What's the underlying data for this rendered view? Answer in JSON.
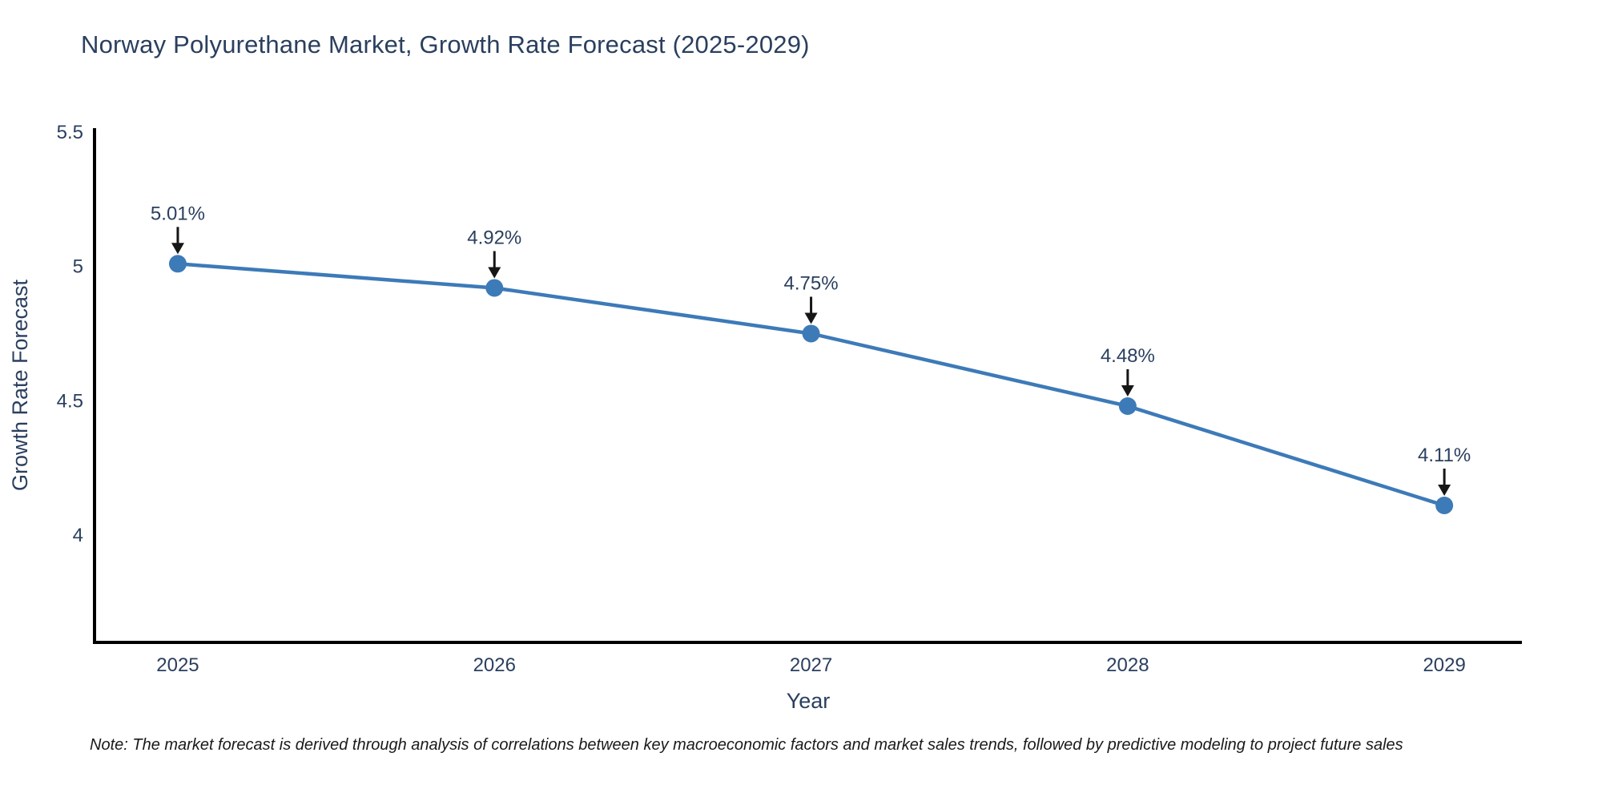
{
  "title": "Norway Polyurethane Market, Growth Rate Forecast (2025-2029)",
  "note": {
    "text": "Note: The market forecast is derived through analysis of correlations between key macroeconomic factors and market sales trends, followed by predictive modeling to project future sales"
  },
  "chart_data": {
    "type": "line",
    "title": "Norway Polyurethane Market, Growth Rate Forecast (2025-2029)",
    "xlabel": "Year",
    "ylabel": "Growth Rate Forecast",
    "x": [
      2025,
      2026,
      2027,
      2028,
      2029
    ],
    "values": [
      5.01,
      4.92,
      4.75,
      4.48,
      4.11
    ],
    "point_labels": [
      "5.01%",
      "4.92%",
      "4.75%",
      "4.48%",
      "4.11%"
    ],
    "xtick_labels": [
      "2025",
      "2026",
      "2027",
      "2028",
      "2029"
    ],
    "yticks": [
      5.5,
      5.0,
      4.5,
      4.0
    ],
    "ytick_labels": [
      "5.5",
      "5",
      "4.5",
      "4"
    ],
    "xlim": [
      2024.737,
      2029.245
    ],
    "ylim": [
      3.6,
      5.515
    ],
    "grid": false,
    "legend": false,
    "colors": {
      "line": "#3d7ab8",
      "marker": "#3d7ab8",
      "axis": "#000000",
      "text": "#2a3f5f",
      "arrow": "#161616",
      "background": "#ffffff"
    }
  }
}
